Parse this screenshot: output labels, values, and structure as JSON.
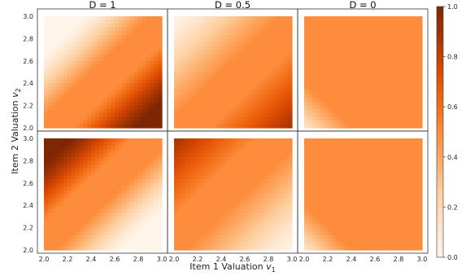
{
  "chart_data": {
    "type": "heatmap",
    "column_titles": [
      "D = 1",
      "D = 0.5",
      "D = 0"
    ],
    "xlabel": "Item 1 Valuation",
    "xlabel_sub": "1",
    "ylabel": "Item 2 Valuation",
    "ylabel_sub": "2",
    "xlim": [
      2.0,
      3.0
    ],
    "ylim": [
      2.0,
      3.0
    ],
    "x_ticks": [
      "2.0",
      "2.2",
      "2.4",
      "2.6",
      "2.8",
      "3.0"
    ],
    "y_ticks": [
      "2.0",
      "2.2",
      "2.4",
      "2.6",
      "2.8",
      "3.0"
    ],
    "colorbar": {
      "colormap": "Oranges",
      "range": [
        0.0,
        1.0
      ],
      "ticks": [
        "0.0",
        "0.2",
        "0.4",
        "0.6",
        "0.8",
        "1.0"
      ]
    },
    "grid": false,
    "panels": [
      {
        "row": 1,
        "col": 1,
        "title": "D = 1",
        "description": "low (~0) in top-left corner, ~0.5 band across middle, rising to ~1.0 at bottom-right"
      },
      {
        "row": 1,
        "col": 2,
        "title": "D = 0.5",
        "description": "light (~0.2) top-left, ~0.5 middle, ~0.75 at bottom-right"
      },
      {
        "row": 1,
        "col": 3,
        "title": "D = 0",
        "description": "nearly uniform ~0.5, lighter at lower-left corner"
      },
      {
        "row": 2,
        "col": 1,
        "title": "",
        "description": "~1.0 at top-left corner, ~0.5 middle, ~0 at bottom-right"
      },
      {
        "row": 2,
        "col": 2,
        "title": "",
        "description": "~0.75 at top-left, ~0.5 middle, ~0.2 at bottom-right"
      },
      {
        "row": 2,
        "col": 3,
        "title": "",
        "description": "nearly uniform ~0.5, lighter at lower-left corner"
      }
    ]
  }
}
